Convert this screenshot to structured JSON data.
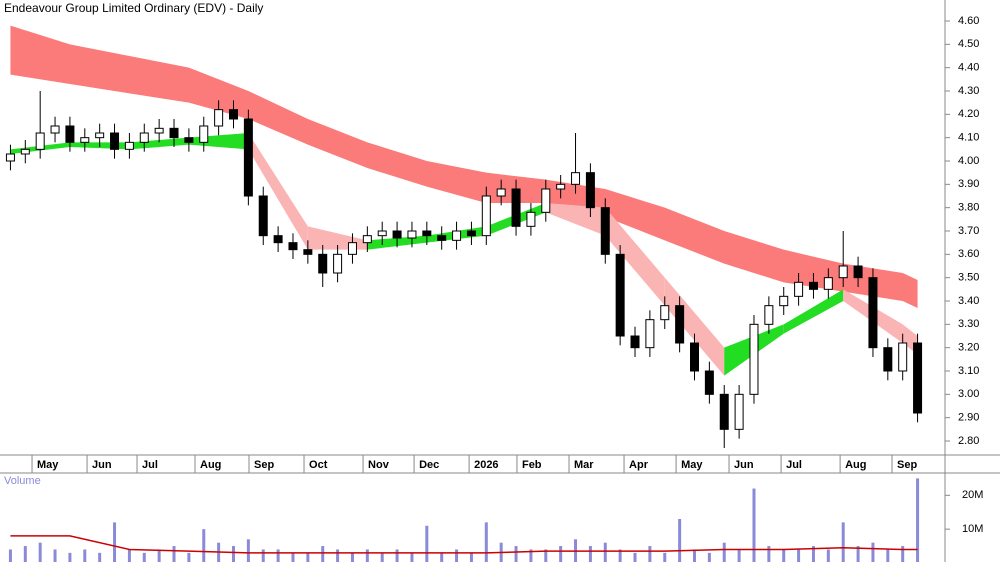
{
  "chart_data": {
    "type": "candlestick",
    "title": "Endeavour Group Limited Ordinary (EDV) - Daily",
    "up_color": "#ffffff",
    "down_color": "#000000",
    "open": [
      4.0,
      4.03,
      4.05,
      4.12,
      4.15,
      4.08,
      4.1,
      4.12,
      4.05,
      4.08,
      4.12,
      4.14,
      4.1,
      4.08,
      4.15,
      4.22,
      4.18,
      3.85,
      3.68,
      3.65,
      3.62,
      3.6,
      3.52,
      3.6,
      3.65,
      3.68,
      3.7,
      3.67,
      3.7,
      3.68,
      3.66,
      3.7,
      3.68,
      3.85,
      3.88,
      3.72,
      3.78,
      3.88,
      3.9,
      3.95,
      3.8,
      3.6,
      3.25,
      3.2,
      3.32,
      3.38,
      3.22,
      3.1,
      3.0,
      2.85,
      3.0,
      3.3,
      3.38,
      3.42,
      3.48,
      3.45,
      3.5,
      3.55,
      3.5,
      3.2,
      3.1,
      3.22
    ],
    "high": [
      4.07,
      4.09,
      4.3,
      4.19,
      4.19,
      4.14,
      4.16,
      4.16,
      4.12,
      4.16,
      4.18,
      4.18,
      4.14,
      4.19,
      4.26,
      4.26,
      4.22,
      3.89,
      3.72,
      3.69,
      3.66,
      3.64,
      3.64,
      3.69,
      3.72,
      3.74,
      3.74,
      3.74,
      3.74,
      3.72,
      3.74,
      3.74,
      3.89,
      3.92,
      3.92,
      3.82,
      3.92,
      3.94,
      4.12,
      3.99,
      3.84,
      3.64,
      3.29,
      3.36,
      3.42,
      3.42,
      3.26,
      3.14,
      3.04,
      3.04,
      3.34,
      3.42,
      3.46,
      3.52,
      3.52,
      3.54,
      3.7,
      3.59,
      3.54,
      3.24,
      3.26,
      3.26
    ],
    "low": [
      3.96,
      3.99,
      4.01,
      4.08,
      4.04,
      4.04,
      4.06,
      4.01,
      4.01,
      4.04,
      4.08,
      4.06,
      4.04,
      4.04,
      4.11,
      4.14,
      3.81,
      3.64,
      3.61,
      3.58,
      3.56,
      3.46,
      3.48,
      3.56,
      3.61,
      3.64,
      3.63,
      3.63,
      3.64,
      3.62,
      3.62,
      3.64,
      3.64,
      3.81,
      3.68,
      3.68,
      3.74,
      3.84,
      3.86,
      3.76,
      3.56,
      3.21,
      3.16,
      3.16,
      3.28,
      3.18,
      3.06,
      2.96,
      2.77,
      2.81,
      2.96,
      3.26,
      3.34,
      3.38,
      3.41,
      3.41,
      3.46,
      3.46,
      3.16,
      3.06,
      3.06,
      2.88
    ],
    "close": [
      4.03,
      4.05,
      4.12,
      4.15,
      4.08,
      4.1,
      4.12,
      4.05,
      4.08,
      4.12,
      4.14,
      4.1,
      4.08,
      4.15,
      4.22,
      4.18,
      3.85,
      3.68,
      3.65,
      3.62,
      3.6,
      3.52,
      3.6,
      3.65,
      3.68,
      3.7,
      3.67,
      3.7,
      3.68,
      3.66,
      3.7,
      3.68,
      3.85,
      3.88,
      3.72,
      3.78,
      3.88,
      3.9,
      3.95,
      3.8,
      3.6,
      3.25,
      3.2,
      3.32,
      3.38,
      3.22,
      3.1,
      3.0,
      2.85,
      3.0,
      3.3,
      3.38,
      3.42,
      3.48,
      3.45,
      3.5,
      3.55,
      3.5,
      3.2,
      3.1,
      3.22,
      2.92
    ],
    "xlim": [
      0,
      62
    ],
    "xticks": [
      {
        "value": 2.49,
        "label": "May"
      },
      {
        "value": 6.19,
        "label": "Jun"
      },
      {
        "value": 9.55,
        "label": "Jul"
      },
      {
        "value": 13.45,
        "label": "Aug"
      },
      {
        "value": 17.08,
        "label": "Sep"
      },
      {
        "value": 20.78,
        "label": "Oct"
      },
      {
        "value": 24.75,
        "label": "Nov"
      },
      {
        "value": 28.18,
        "label": "Dec"
      },
      {
        "value": 31.88,
        "label": "2026"
      },
      {
        "value": 35.1,
        "label": "Feb"
      },
      {
        "value": 38.6,
        "label": "Mar"
      },
      {
        "value": 42.3,
        "label": "Apr"
      },
      {
        "value": 45.8,
        "label": "May"
      },
      {
        "value": 49.36,
        "label": "Jun"
      },
      {
        "value": 52.86,
        "label": "Jul"
      },
      {
        "value": 56.83,
        "label": "Aug"
      },
      {
        "value": 60.32,
        "label": "Sep"
      }
    ],
    "ylim": [
      2.74,
      4.69
    ],
    "yticks": [
      {
        "value": 2.8,
        "label": "2.80"
      },
      {
        "value": 2.9,
        "label": "2.90"
      },
      {
        "value": 3.0,
        "label": "3.00"
      },
      {
        "value": 3.1,
        "label": "3.10"
      },
      {
        "value": 3.2,
        "label": "3.20"
      },
      {
        "value": 3.3,
        "label": "3.30"
      },
      {
        "value": 3.4,
        "label": "3.40"
      },
      {
        "value": 3.5,
        "label": "3.50"
      },
      {
        "value": 3.6,
        "label": "3.60"
      },
      {
        "value": 3.7,
        "label": "3.70"
      },
      {
        "value": 3.8,
        "label": "3.80"
      },
      {
        "value": 3.9,
        "label": "3.90"
      },
      {
        "value": 4.0,
        "label": "4.00"
      },
      {
        "value": 4.1,
        "label": "4.10"
      },
      {
        "value": 4.2,
        "label": "4.20"
      },
      {
        "value": 4.3,
        "label": "4.30"
      },
      {
        "value": 4.4,
        "label": "4.40"
      },
      {
        "value": 4.5,
        "label": "4.50"
      },
      {
        "value": 4.6,
        "label": "4.60"
      }
    ],
    "band_x": [
      0,
      4,
      8,
      12,
      16,
      20,
      24,
      28,
      32,
      36,
      40,
      44,
      48,
      52,
      56,
      60,
      61
    ],
    "slow_band": {
      "color": "#fb7a7a",
      "top": [
        4.58,
        4.5,
        4.45,
        4.4,
        4.3,
        4.18,
        4.08,
        4.0,
        3.95,
        3.92,
        3.88,
        3.8,
        3.7,
        3.62,
        3.56,
        3.52,
        3.49
      ],
      "bottom": [
        4.37,
        4.33,
        4.29,
        4.25,
        4.18,
        4.07,
        3.97,
        3.89,
        3.82,
        3.82,
        3.76,
        3.66,
        3.56,
        3.48,
        3.44,
        3.4,
        3.37
      ]
    },
    "fast_band": {
      "rise_color": "#22dd22",
      "fall_color": "#fbb4b4",
      "top": [
        4.05,
        4.08,
        4.08,
        4.1,
        4.12,
        3.72,
        3.66,
        3.68,
        3.72,
        3.82,
        3.8,
        3.5,
        3.2,
        3.3,
        3.45,
        3.3,
        3.25
      ],
      "bottom": [
        4.03,
        4.06,
        4.05,
        4.07,
        4.05,
        3.62,
        3.62,
        3.65,
        3.68,
        3.78,
        3.68,
        3.38,
        3.08,
        3.26,
        3.4,
        3.22,
        3.17
      ]
    },
    "volume": {
      "label": "Volume",
      "color": "#8a8ad8",
      "ma_color": "#cc0000",
      "values": [
        4000000,
        5000000,
        6000000,
        4000000,
        3000000,
        4000000,
        3000000,
        12000000,
        4000000,
        3000000,
        4000000,
        5000000,
        3000000,
        10000000,
        6000000,
        5000000,
        7000000,
        4000000,
        4000000,
        3000000,
        3000000,
        5000000,
        4000000,
        3000000,
        4000000,
        3000000,
        4000000,
        3000000,
        11000000,
        3000000,
        4000000,
        3000000,
        12000000,
        6000000,
        5000000,
        4000000,
        4000000,
        5000000,
        7000000,
        5000000,
        6000000,
        4000000,
        3000000,
        5000000,
        3000000,
        13000000,
        4000000,
        3000000,
        6000000,
        4000000,
        22000000,
        5000000,
        4000000,
        4000000,
        5000000,
        4000000,
        12000000,
        5000000,
        6000000,
        4000000,
        5000000,
        25000000
      ],
      "ma_values": [
        8000000,
        8000000,
        4000000,
        3500000,
        3000000,
        3000000,
        3000000,
        3000000,
        3000000,
        3500000,
        3500000,
        3500000,
        4000000,
        4000000,
        4500000,
        4000000,
        4000000
      ],
      "ylim": [
        0,
        26000000
      ],
      "yticks": [
        {
          "value": 10000000,
          "label": "10M"
        },
        {
          "value": 20000000,
          "label": "20M"
        }
      ]
    }
  }
}
